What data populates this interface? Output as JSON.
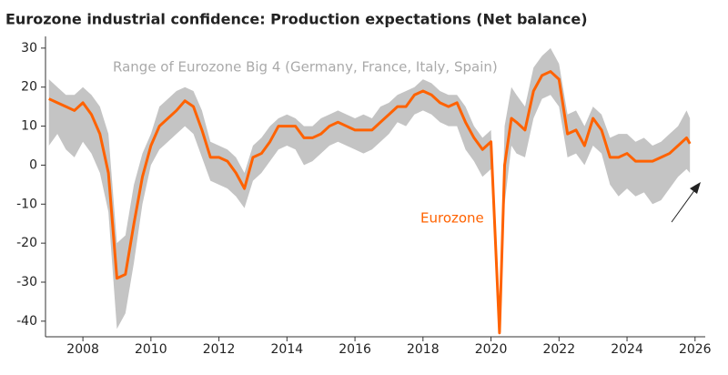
{
  "chart_data": {
    "type": "line",
    "title": "Eurozone industrial confidence: Production expectations (Net balance)",
    "x": [
      2007.0,
      2007.25,
      2007.5,
      2007.75,
      2008.0,
      2008.25,
      2008.5,
      2008.75,
      2009.0,
      2009.25,
      2009.5,
      2009.75,
      2010.0,
      2010.25,
      2010.5,
      2010.75,
      2011.0,
      2011.25,
      2011.5,
      2011.75,
      2012.0,
      2012.25,
      2012.5,
      2012.75,
      2013.0,
      2013.25,
      2013.5,
      2013.75,
      2014.0,
      2014.25,
      2014.5,
      2014.75,
      2015.0,
      2015.25,
      2015.5,
      2015.75,
      2016.0,
      2016.25,
      2016.5,
      2016.75,
      2017.0,
      2017.25,
      2017.5,
      2017.75,
      2018.0,
      2018.25,
      2018.5,
      2018.75,
      2019.0,
      2019.25,
      2019.5,
      2019.75,
      2020.0,
      2020.25,
      2020.4,
      2020.6,
      2020.75,
      2021.0,
      2021.25,
      2021.5,
      2021.75,
      2022.0,
      2022.25,
      2022.5,
      2022.75,
      2023.0,
      2023.25,
      2023.5,
      2023.75,
      2024.0,
      2024.25,
      2024.5,
      2024.75,
      2025.0,
      2025.25,
      2025.5,
      2025.75,
      2025.85
    ],
    "series": [
      {
        "name": "Range of Eurozone Big 4 (Germany, France, Italy, Spain)",
        "color": "#c4c4c4",
        "high": [
          22,
          20,
          18,
          18,
          20,
          18,
          15,
          8,
          -20,
          -18,
          -5,
          3,
          8,
          15,
          17,
          19,
          20,
          19,
          14,
          6,
          5,
          4,
          2,
          -2,
          5,
          7,
          10,
          12,
          13,
          12,
          10,
          10,
          12,
          13,
          14,
          13,
          12,
          13,
          12,
          15,
          16,
          18,
          19,
          20,
          22,
          21,
          19,
          18,
          18,
          15,
          10,
          7,
          9,
          -40,
          10,
          20,
          18,
          15,
          25,
          28,
          30,
          26,
          13,
          14,
          10,
          15,
          13,
          7,
          8,
          8,
          6,
          7,
          5,
          6,
          8,
          10,
          14,
          12
        ],
        "low": [
          5,
          8,
          4,
          2,
          6,
          3,
          -2,
          -12,
          -42,
          -38,
          -25,
          -10,
          0,
          4,
          6,
          8,
          10,
          8,
          2,
          -4,
          -5,
          -6,
          -8,
          -11,
          -4,
          -2,
          1,
          4,
          5,
          4,
          0,
          1,
          3,
          5,
          6,
          5,
          4,
          3,
          4,
          6,
          8,
          11,
          10,
          13,
          14,
          13,
          11,
          10,
          10,
          4,
          1,
          -3,
          -1,
          -44,
          -10,
          5,
          3,
          2,
          12,
          17,
          18,
          15,
          2,
          3,
          0,
          5,
          3,
          -5,
          -8,
          -6,
          -8,
          -7,
          -10,
          -9,
          -6,
          -3,
          -1,
          -2
        ]
      },
      {
        "name": "Eurozone",
        "color": "#ff6200",
        "values": [
          17,
          16,
          15,
          14,
          16,
          13,
          8,
          -2,
          -29,
          -28,
          -15,
          -3,
          5,
          10,
          12,
          14,
          16.5,
          15,
          9,
          2,
          2,
          1,
          -2,
          -6,
          2,
          3,
          6,
          10,
          10,
          10,
          7,
          7,
          8,
          10,
          11,
          10,
          9,
          9,
          9,
          11,
          13,
          15,
          15,
          18,
          19,
          18,
          16,
          15,
          16,
          11,
          7,
          4,
          6,
          -43,
          0,
          12,
          11,
          9,
          19,
          23,
          24,
          22,
          8,
          9,
          5,
          12,
          9,
          2,
          2,
          3,
          1,
          1,
          1,
          2,
          3,
          5,
          7,
          5.5
        ]
      }
    ],
    "xlim": [
      2006.9,
      2026.3
    ],
    "xticks": [
      2008,
      2010,
      2012,
      2014,
      2016,
      2018,
      2020,
      2022,
      2024,
      2026
    ],
    "ylim": [
      -44,
      33
    ],
    "yticks": [
      -40,
      -30,
      -20,
      -10,
      0,
      10,
      20,
      30
    ],
    "grid": false
  }
}
